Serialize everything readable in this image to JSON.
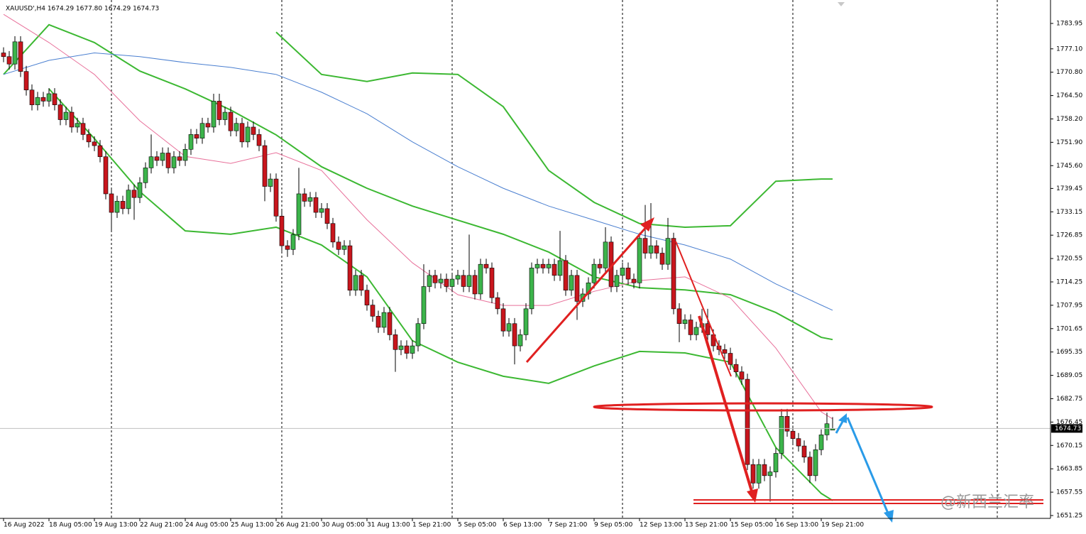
{
  "chart_data": {
    "type": "candlestick",
    "title": "XAUUSD',H4  1674.29 1677.80 1674.29 1674.73",
    "watermark": "@新西兰汇率",
    "up_color": "#3cb44b",
    "down_color": "#c8161d",
    "wick_color": "#000000",
    "grid": false,
    "xlim": [
      -0.625,
      184.375
    ],
    "ylim": [
      1650.48,
      1790.27
    ],
    "yticks": [
      1783.95,
      {
        "value": 1777.1,
        "label": "1777.10"
      },
      {
        "value": 1770.8,
        "label": "1770.80"
      },
      {
        "value": 1764.5,
        "label": "1764.50"
      },
      {
        "value": 1758.2,
        "label": "1758.20"
      },
      {
        "value": 1751.9,
        "label": "1751.90"
      },
      {
        "value": 1745.6,
        "label": "1745.60"
      },
      1739.45,
      1733.15,
      1726.85,
      1720.55,
      1714.25,
      1707.95,
      1701.65,
      1695.35,
      1689.05,
      1682.75,
      1676.45,
      1670.15,
      1663.85,
      1657.55,
      1651.25
    ],
    "xticks": [
      {
        "value": 0,
        "label": "16 Aug 2022"
      },
      {
        "value": 8,
        "label": "18 Aug 05:00"
      },
      {
        "value": 16,
        "label": "19 Aug 13:00"
      },
      {
        "value": 24,
        "label": "22 Aug 21:00"
      },
      {
        "value": 32,
        "label": "24 Aug 05:00"
      },
      {
        "value": 40,
        "label": "25 Aug 13:00"
      },
      {
        "value": 48,
        "label": "26 Aug 21:00"
      },
      {
        "value": 56,
        "label": "30 Aug 05:00"
      },
      {
        "value": 64,
        "label": "31 Aug 13:00"
      },
      {
        "value": 72,
        "label": "1 Sep 21:00"
      },
      {
        "value": 80,
        "label": "5 Sep 05:00"
      },
      {
        "value": 88,
        "label": "6 Sep 13:00"
      },
      {
        "value": 96,
        "label": "7 Sep 21:00"
      },
      {
        "value": 104,
        "label": "9 Sep 05:00"
      },
      {
        "value": 112,
        "label": "12 Sep 13:00"
      },
      {
        "value": 120,
        "label": "13 Sep 21:00"
      },
      {
        "value": 128,
        "label": "15 Sep 05:00"
      },
      {
        "value": 136,
        "label": "16 Sep 13:00"
      },
      {
        "value": 144,
        "label": "19 Sep 21:00"
      }
    ],
    "ohlc": [
      [
        1776,
        1777.5,
        1773.5,
        1775
      ],
      [
        1775,
        1776.5,
        1771.5,
        1773
      ],
      [
        1773,
        1780.5,
        1771.5,
        1779
      ],
      [
        1779,
        1780.5,
        1769.5,
        1771
      ],
      [
        1771,
        1772.5,
        1764.5,
        1766
      ],
      [
        1766,
        1767.5,
        1760.5,
        1762
      ],
      [
        1762,
        1765.5,
        1760.5,
        1764
      ],
      [
        1764,
        1765.5,
        1761.5,
        1763
      ],
      [
        1763,
        1766.5,
        1761.5,
        1765
      ],
      [
        1765,
        1766.5,
        1760.5,
        1762
      ],
      [
        1762,
        1763.5,
        1756.5,
        1758
      ],
      [
        1758,
        1761.5,
        1756.5,
        1760
      ],
      [
        1760,
        1761.5,
        1754.5,
        1756
      ],
      [
        1756,
        1758.5,
        1754.5,
        1757
      ],
      [
        1757,
        1758.5,
        1752.5,
        1754
      ],
      [
        1754,
        1755.5,
        1750.5,
        1752
      ],
      [
        1752,
        1753.5,
        1749.5,
        1751
      ],
      [
        1751,
        1752.5,
        1746.5,
        1748
      ],
      [
        1748,
        1749.5,
        1736.5,
        1738
      ],
      [
        1738,
        1739.5,
        1728,
        1733
      ],
      [
        1733,
        1737.5,
        1731.5,
        1736
      ],
      [
        1736,
        1737.5,
        1732.5,
        1734
      ],
      [
        1734,
        1740.5,
        1732.5,
        1739
      ],
      [
        1739,
        1740.5,
        1731,
        1737
      ],
      [
        1737,
        1742.5,
        1735.5,
        1741
      ],
      [
        1741,
        1746.5,
        1739.5,
        1745
      ],
      [
        1745,
        1754,
        1743.5,
        1748
      ],
      [
        1748,
        1749.5,
        1745.5,
        1747
      ],
      [
        1747,
        1750.5,
        1745.5,
        1749
      ],
      [
        1749,
        1750.5,
        1743.5,
        1745
      ],
      [
        1745,
        1749.5,
        1743.5,
        1748
      ],
      [
        1748,
        1749.5,
        1745.5,
        1747
      ],
      [
        1747,
        1751.5,
        1745.5,
        1750
      ],
      [
        1750,
        1755.5,
        1748.5,
        1754
      ],
      [
        1754,
        1755.5,
        1751.5,
        1753
      ],
      [
        1753,
        1758.5,
        1751.5,
        1757
      ],
      [
        1757,
        1758.5,
        1754.5,
        1756
      ],
      [
        1756,
        1765,
        1754.5,
        1763
      ],
      [
        1763,
        1765,
        1756.5,
        1758
      ],
      [
        1758,
        1761.5,
        1756.5,
        1760
      ],
      [
        1760,
        1761.5,
        1753.5,
        1755
      ],
      [
        1755,
        1758.5,
        1753.5,
        1757
      ],
      [
        1757,
        1758.5,
        1750.5,
        1752
      ],
      [
        1752,
        1757.5,
        1750.5,
        1756
      ],
      [
        1756,
        1757.5,
        1752.5,
        1754
      ],
      [
        1754,
        1755.5,
        1749.5,
        1751
      ],
      [
        1751,
        1752.5,
        1736,
        1740
      ],
      [
        1740,
        1743.5,
        1738.5,
        1742
      ],
      [
        1742,
        1743.5,
        1730.5,
        1732
      ],
      [
        1732,
        1733.5,
        1722.5,
        1724
      ],
      [
        1724,
        1725.5,
        1721,
        1723
      ],
      [
        1723,
        1728.5,
        1721.5,
        1727
      ],
      [
        1727,
        1745,
        1725.5,
        1738
      ],
      [
        1738,
        1739.5,
        1734.5,
        1736
      ],
      [
        1736,
        1738.5,
        1734.5,
        1737
      ],
      [
        1737,
        1738.5,
        1731.5,
        1733
      ],
      [
        1733,
        1735.5,
        1731.5,
        1734
      ],
      [
        1734,
        1735.5,
        1728.5,
        1730
      ],
      [
        1730,
        1731.5,
        1723.5,
        1725
      ],
      [
        1725,
        1726.5,
        1721.5,
        1723
      ],
      [
        1723,
        1725.5,
        1721.5,
        1724
      ],
      [
        1724,
        1725.5,
        1710.5,
        1712
      ],
      [
        1712,
        1717.5,
        1710.5,
        1716
      ],
      [
        1716,
        1717.5,
        1710.5,
        1712
      ],
      [
        1712,
        1713.5,
        1706.5,
        1708
      ],
      [
        1708,
        1709.5,
        1703.5,
        1705
      ],
      [
        1705,
        1706.5,
        1700.5,
        1702
      ],
      [
        1702,
        1707.5,
        1700.5,
        1706
      ],
      [
        1706,
        1707.5,
        1698.5,
        1700
      ],
      [
        1700,
        1701.5,
        1690,
        1696
      ],
      [
        1696,
        1698.5,
        1694.5,
        1697
      ],
      [
        1697,
        1698.5,
        1693.5,
        1695
      ],
      [
        1695,
        1698.5,
        1693.5,
        1697
      ],
      [
        1697,
        1704.5,
        1695.5,
        1703
      ],
      [
        1703,
        1719,
        1701.5,
        1713
      ],
      [
        1713,
        1717.5,
        1711.5,
        1716
      ],
      [
        1716,
        1717.5,
        1712.5,
        1714
      ],
      [
        1714,
        1716.5,
        1712.5,
        1715
      ],
      [
        1715,
        1716.5,
        1711.5,
        1713
      ],
      [
        1713,
        1716.5,
        1711.5,
        1715
      ],
      [
        1715,
        1717.5,
        1713.5,
        1716
      ],
      [
        1716,
        1717.5,
        1711.5,
        1713
      ],
      [
        1713,
        1727,
        1711.5,
        1716
      ],
      [
        1716,
        1717.5,
        1709.5,
        1711
      ],
      [
        1711,
        1720.5,
        1709.5,
        1719
      ],
      [
        1719,
        1720.5,
        1716.5,
        1718
      ],
      [
        1718,
        1719.5,
        1708.5,
        1710
      ],
      [
        1710,
        1711.5,
        1705.5,
        1707
      ],
      [
        1707,
        1708.5,
        1699.5,
        1701
      ],
      [
        1701,
        1704.5,
        1699.5,
        1703
      ],
      [
        1703,
        1704.5,
        1692,
        1697
      ],
      [
        1697,
        1701.5,
        1695.5,
        1700
      ],
      [
        1700,
        1708.5,
        1698.5,
        1707
      ],
      [
        1707,
        1719.5,
        1705.5,
        1718
      ],
      [
        1718,
        1720.5,
        1716.5,
        1719
      ],
      [
        1719,
        1720.5,
        1716.5,
        1718
      ],
      [
        1718,
        1720.5,
        1716.5,
        1719
      ],
      [
        1719,
        1720.5,
        1714.5,
        1716
      ],
      [
        1716,
        1728,
        1714.5,
        1720
      ],
      [
        1720,
        1721.5,
        1710.5,
        1712
      ],
      [
        1712,
        1717.5,
        1710.5,
        1716
      ],
      [
        1716,
        1717.5,
        1704,
        1709
      ],
      [
        1709,
        1712.5,
        1707.5,
        1711
      ],
      [
        1711,
        1715.5,
        1709.5,
        1714
      ],
      [
        1714,
        1720.5,
        1712.5,
        1719
      ],
      [
        1719,
        1720.5,
        1716.5,
        1718
      ],
      [
        1718,
        1729,
        1716.5,
        1725
      ],
      [
        1725,
        1726.5,
        1711.5,
        1713
      ],
      [
        1713,
        1717.5,
        1711.5,
        1716
      ],
      [
        1716,
        1719.5,
        1714.5,
        1718
      ],
      [
        1718,
        1719.5,
        1713.5,
        1715
      ],
      [
        1715,
        1716.5,
        1712.5,
        1714
      ],
      [
        1714,
        1727.5,
        1712.5,
        1726
      ],
      [
        1726,
        1735,
        1720.5,
        1722
      ],
      [
        1722,
        1735.5,
        1720.5,
        1724
      ],
      [
        1724,
        1725.5,
        1720.5,
        1722
      ],
      [
        1722,
        1723.5,
        1717.5,
        1719
      ],
      [
        1719,
        1731.5,
        1717.5,
        1726
      ],
      [
        1726,
        1727.5,
        1705.5,
        1707
      ],
      [
        1707,
        1708.5,
        1698,
        1703
      ],
      [
        1703,
        1705.5,
        1701.5,
        1704
      ],
      [
        1704,
        1705.5,
        1698.5,
        1700
      ],
      [
        1700,
        1703.5,
        1698.5,
        1702
      ],
      [
        1702,
        1707,
        1700.5,
        1703
      ],
      [
        1703,
        1707,
        1698.5,
        1700
      ],
      [
        1700,
        1701.5,
        1695.5,
        1697
      ],
      [
        1697,
        1698.5,
        1694.5,
        1696
      ],
      [
        1696,
        1697.5,
        1693.5,
        1695
      ],
      [
        1695,
        1696.5,
        1690.5,
        1692
      ],
      [
        1692,
        1693.5,
        1688.5,
        1690
      ],
      [
        1690,
        1691.5,
        1686.5,
        1688
      ],
      [
        1688,
        1689.5,
        1663.5,
        1665
      ],
      [
        1665,
        1666.5,
        1658.5,
        1660
      ],
      [
        1660,
        1666.5,
        1658.5,
        1665
      ],
      [
        1665,
        1666.5,
        1660.5,
        1662
      ],
      [
        1662,
        1664.5,
        1655,
        1663
      ],
      [
        1663,
        1669.5,
        1661.5,
        1668
      ],
      [
        1668,
        1680,
        1666.5,
        1678
      ],
      [
        1678,
        1680,
        1672.5,
        1674
      ],
      [
        1674,
        1675.5,
        1670.5,
        1672
      ],
      [
        1672,
        1673.5,
        1668.5,
        1670
      ],
      [
        1670,
        1671.5,
        1665.5,
        1667
      ],
      [
        1667,
        1668.5,
        1660,
        1662
      ],
      [
        1662,
        1670.5,
        1660.5,
        1669
      ],
      [
        1669,
        1674.5,
        1667.5,
        1673
      ],
      [
        1673,
        1679,
        1671.5,
        1676
      ],
      [
        1674.29,
        1677.8,
        1674.29,
        1674.73
      ]
    ],
    "line_x": [
      0,
      8,
      16,
      24,
      32,
      40,
      48,
      56,
      64,
      72,
      80,
      88,
      96,
      104,
      112,
      120,
      128,
      136,
      144,
      146
    ],
    "lines": [
      {
        "color": "#3cb832",
        "values": [
          1770.2,
          1783.6,
          1778.8,
          1771.1,
          1766.3,
          1760.6,
          1753.9,
          1745.3,
          1739.5,
          1734.7,
          1730.9,
          1727.1,
          1722.3,
          1715.6,
          1712.7,
          1712.1,
          1710.8,
          1706.0,
          1699.3,
          1698.7
        ]
      },
      {
        "color": "#3cb832",
        "values": [
          null,
          null,
          null,
          null,
          null,
          null,
          1781.6,
          1770.2,
          1768.3,
          1770.6,
          1770.2,
          1761.5,
          1744.3,
          1735.7,
          1730.0,
          1729.0,
          1729.4,
          1741.4,
          1742.0,
          1742.0
        ]
      },
      {
        "color": "#3cb832",
        "values": [
          null,
          1766.3,
          1752.9,
          1738.6,
          1728.0,
          1727.1,
          1729.0,
          1724.2,
          1715.6,
          1698.4,
          1692.6,
          1688.8,
          1686.9,
          1691.6,
          1695.5,
          1695.1,
          1692.6,
          1669.6,
          1657.2,
          1655.3
        ]
      },
      {
        "color": "#e8709a",
        "values": [
          1786.4,
          1778.8,
          1770.2,
          1757.7,
          1748.1,
          1746.2,
          1749.1,
          1744.3,
          1731.0,
          1719.4,
          1710.8,
          1707.9,
          1707.9,
          1711.7,
          1714.6,
          1715.6,
          1709.9,
          1696.4,
          1679.2,
          1677.3
        ]
      },
      {
        "color": "#4a7fd0",
        "values": [
          1770.2,
          1774.0,
          1776.0,
          1775.0,
          1773.4,
          1772.1,
          1770.2,
          1765.4,
          1759.6,
          1752.0,
          1745.3,
          1739.5,
          1734.7,
          1730.9,
          1727.1,
          1724.2,
          1720.4,
          1713.7,
          1708.0,
          1706.6
        ]
      }
    ]
  }
}
